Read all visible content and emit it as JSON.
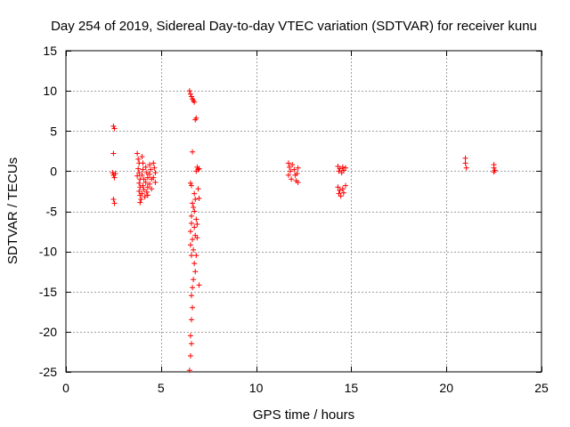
{
  "chart_data": {
    "type": "scatter",
    "title": "Day 254 of 2019, Sidereal Day-to-day VTEC variation (SDTVAR) for receiver kunu",
    "xlabel": "GPS time / hours",
    "ylabel": "SDTVAR / TECUs",
    "xlim": [
      0,
      25
    ],
    "ylim": [
      -25,
      15
    ],
    "x_ticks": [
      0,
      5,
      10,
      15,
      20,
      25
    ],
    "y_ticks": [
      -25,
      -20,
      -15,
      -10,
      -5,
      0,
      5,
      10,
      15
    ],
    "x_tick_labels": [
      "0",
      "5",
      "10",
      "15",
      "20",
      "25"
    ],
    "y_tick_labels": [
      "-25",
      "-20",
      "-15",
      "-10",
      "-5",
      "0",
      "5",
      "10",
      "15"
    ],
    "grid": true,
    "marker": "+",
    "color": "#ff0000",
    "series": [
      {
        "name": "SDTVAR",
        "points": [
          [
            2.5,
            5.6
          ],
          [
            2.55,
            5.3
          ],
          [
            2.5,
            2.2
          ],
          [
            2.45,
            -0.2
          ],
          [
            2.5,
            -0.5
          ],
          [
            2.55,
            -0.8
          ],
          [
            2.6,
            -0.3
          ],
          [
            2.5,
            -3.5
          ],
          [
            2.55,
            -4.0
          ],
          [
            3.75,
            2.2
          ],
          [
            3.8,
            1.5
          ],
          [
            3.85,
            1.0
          ],
          [
            3.8,
            0.3
          ],
          [
            3.85,
            -0.2
          ],
          [
            3.75,
            -0.6
          ],
          [
            3.9,
            -1.0
          ],
          [
            3.85,
            -1.5
          ],
          [
            3.9,
            -2.0
          ],
          [
            3.85,
            -2.5
          ],
          [
            3.9,
            -3.0
          ],
          [
            3.95,
            -3.5
          ],
          [
            3.9,
            -3.9
          ],
          [
            4.0,
            1.8
          ],
          [
            4.05,
            1.0
          ],
          [
            4.05,
            0.2
          ],
          [
            4.0,
            -0.5
          ],
          [
            4.1,
            -1.0
          ],
          [
            4.05,
            -1.8
          ],
          [
            4.1,
            -2.3
          ],
          [
            4.0,
            -2.8
          ],
          [
            4.15,
            -3.2
          ],
          [
            4.2,
            0.5
          ],
          [
            4.25,
            -0.2
          ],
          [
            4.3,
            -0.8
          ],
          [
            4.2,
            -1.4
          ],
          [
            4.3,
            -2.0
          ],
          [
            4.25,
            -2.6
          ],
          [
            4.3,
            -3.0
          ],
          [
            4.4,
            0.8
          ],
          [
            4.45,
            0.2
          ],
          [
            4.4,
            -0.4
          ],
          [
            4.5,
            -1.0
          ],
          [
            4.4,
            -1.6
          ],
          [
            4.5,
            -2.2
          ],
          [
            4.6,
            1.0
          ],
          [
            4.65,
            0.4
          ],
          [
            4.7,
            -0.2
          ],
          [
            4.6,
            -0.8
          ],
          [
            4.7,
            -1.4
          ],
          [
            6.5,
            10.0
          ],
          [
            6.55,
            9.6
          ],
          [
            6.6,
            9.3
          ],
          [
            6.65,
            9.0
          ],
          [
            6.7,
            8.8
          ],
          [
            6.75,
            8.6
          ],
          [
            6.85,
            6.6
          ],
          [
            6.8,
            6.4
          ],
          [
            6.65,
            2.4
          ],
          [
            6.9,
            0.5
          ],
          [
            6.95,
            0.2
          ],
          [
            6.85,
            0.0
          ],
          [
            7.0,
            0.3
          ],
          [
            6.55,
            -1.5
          ],
          [
            6.6,
            -1.8
          ],
          [
            6.95,
            -2.2
          ],
          [
            6.75,
            -2.8
          ],
          [
            6.8,
            -3.5
          ],
          [
            6.65,
            -4.0
          ],
          [
            7.0,
            -3.4
          ],
          [
            6.7,
            -4.5
          ],
          [
            6.75,
            -5.0
          ],
          [
            6.6,
            -5.6
          ],
          [
            6.85,
            -6.0
          ],
          [
            6.6,
            -6.5
          ],
          [
            6.75,
            -7.0
          ],
          [
            6.9,
            -6.6
          ],
          [
            6.55,
            -7.5
          ],
          [
            6.8,
            -8.0
          ],
          [
            6.65,
            -8.5
          ],
          [
            6.9,
            -8.3
          ],
          [
            6.55,
            -9.2
          ],
          [
            6.7,
            -9.8
          ],
          [
            6.6,
            -10.5
          ],
          [
            6.85,
            -10.5
          ],
          [
            6.75,
            -11.5
          ],
          [
            6.8,
            -12.5
          ],
          [
            6.7,
            -13.5
          ],
          [
            6.65,
            -14.5
          ],
          [
            7.0,
            -14.2
          ],
          [
            6.6,
            -15.5
          ],
          [
            6.65,
            -17.0
          ],
          [
            6.6,
            -18.5
          ],
          [
            6.55,
            -20.5
          ],
          [
            6.6,
            -21.5
          ],
          [
            6.55,
            -23.0
          ],
          [
            6.5,
            -24.8
          ],
          [
            11.7,
            1.0
          ],
          [
            11.75,
            0.5
          ],
          [
            11.8,
            0.0
          ],
          [
            11.7,
            -0.5
          ],
          [
            11.85,
            -1.0
          ],
          [
            11.9,
            0.8
          ],
          [
            12.0,
            0.2
          ],
          [
            12.05,
            -0.5
          ],
          [
            12.1,
            -1.2
          ],
          [
            12.2,
            0.4
          ],
          [
            12.15,
            -0.3
          ],
          [
            12.2,
            -1.4
          ],
          [
            14.3,
            0.6
          ],
          [
            14.35,
            0.0
          ],
          [
            14.4,
            0.3
          ],
          [
            14.5,
            -0.2
          ],
          [
            14.55,
            0.5
          ],
          [
            14.6,
            0.1
          ],
          [
            14.7,
            0.4
          ],
          [
            14.3,
            -2.0
          ],
          [
            14.35,
            -2.8
          ],
          [
            14.4,
            -2.4
          ],
          [
            14.45,
            -3.1
          ],
          [
            14.55,
            -2.2
          ],
          [
            14.6,
            -2.7
          ],
          [
            14.7,
            -1.8
          ],
          [
            21.0,
            1.6
          ],
          [
            21.0,
            1.0
          ],
          [
            21.05,
            0.4
          ],
          [
            22.5,
            0.8
          ],
          [
            22.5,
            0.4
          ],
          [
            22.55,
            0.1
          ],
          [
            22.5,
            -0.1
          ]
        ]
      }
    ]
  }
}
